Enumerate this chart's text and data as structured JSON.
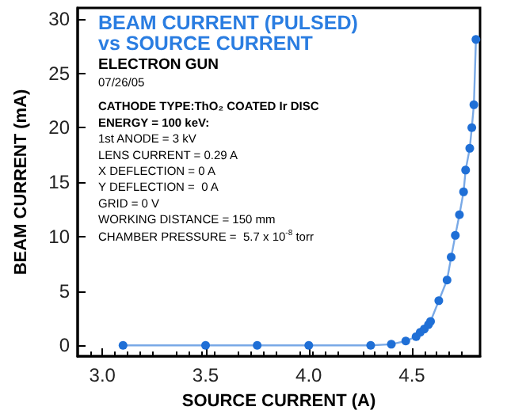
{
  "chart_data": {
    "type": "line",
    "title": "BEAM CURRENT (PULSED) vs SOURCE CURRENT",
    "subtitle": "ELECTRON GUN",
    "xlabel": "SOURCE CURRENT (A)",
    "ylabel": "BEAM CURRENT (mA)",
    "annotations": [
      "07/26/05",
      "CATHODE TYPE:ThO₂ COATED Ir DISC",
      "ENERGY = 100 keV:",
      "1st ANODE = 3 kV",
      "LENS CURRENT = 0.29 A",
      "X DEFLECTION = 0 A",
      "Y DEFLECTION =  0 A",
      "GRID = 0 V",
      "WORKING DISTANCE = 150 mm",
      "CHAMBER PRESSURE =  5.7 x 10$^{-8}$ torr"
    ],
    "x": [
      3.1,
      3.5,
      3.75,
      4.0,
      4.3,
      4.4,
      4.47,
      4.52,
      4.54,
      4.56,
      4.58,
      4.59,
      4.63,
      4.67,
      4.69,
      4.71,
      4.73,
      4.75,
      4.76,
      4.78,
      4.79,
      4.8,
      4.81
    ],
    "series": [
      {
        "color": "#1f6fd6",
        "values": [
          0,
          0,
          0,
          0,
          0,
          0.1,
          0.4,
          0.8,
          1.2,
          1.5,
          1.9,
          2.2,
          4.1,
          6.0,
          8.1,
          10.1,
          12.0,
          14.1,
          16.1,
          18.1,
          20.0,
          22.1,
          28.1
        ]
      }
    ],
    "xlim": [
      2.88,
      4.83
    ],
    "xticks": [
      {
        "value": 3,
        "label": "3.0"
      },
      3.5,
      {
        "value": 4,
        "label": "4.0"
      },
      4.5
    ],
    "ylim": [
      -1,
      31
    ],
    "yticks": [
      0,
      5,
      10,
      15,
      20,
      25,
      30
    ],
    "grid": false,
    "marker": "circle",
    "line_style": "solid"
  }
}
